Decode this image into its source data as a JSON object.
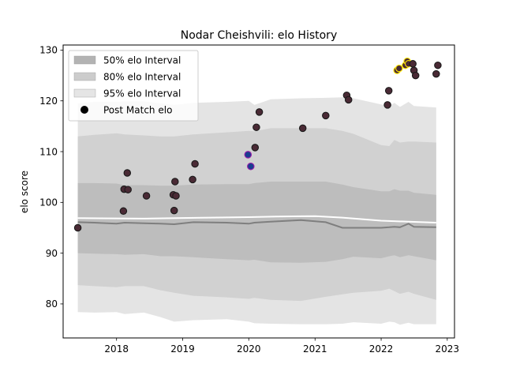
{
  "chart_data": {
    "type": "scatter",
    "title": "Nodar Cheishvili: elo History",
    "xlabel": "",
    "ylabel": "elo score",
    "xlim": [
      "2017-03-12",
      "2023-02-10"
    ],
    "ylim": [
      73.3,
      131
    ],
    "x_ticks": [
      "2018",
      "2019",
      "2020",
      "2021",
      "2022",
      "2023"
    ],
    "y_ticks": [
      80,
      90,
      100,
      110,
      120,
      130
    ],
    "grid": false,
    "legend_position": "top-left",
    "legend": [
      {
        "label": "50% elo Interval",
        "kind": "band",
        "color": "#b3b3b3"
      },
      {
        "label": "80% elo Interval",
        "kind": "band",
        "color": "#cccccc"
      },
      {
        "label": "95% elo Interval",
        "kind": "band",
        "color": "#e5e5e5"
      },
      {
        "label": "Post Match elo",
        "kind": "marker",
        "color": "#000000"
      }
    ],
    "colors": {
      "band50": "#bdbdbd",
      "band80": "#d1d1d1",
      "band95": "#e4e4e4",
      "median_line": "#7f7f7f",
      "reference_line": "#ffffff",
      "point_fill": "#4a2a35",
      "point_edge": "#1a1a1a",
      "highlight_edge": "#ffe600",
      "alt_edge": "#9a1aa8",
      "alt_fill": "#1a3d8f"
    },
    "bands": {
      "x": [
        "2017-06-01",
        "2017-09-01",
        "2018-01-01",
        "2018-02-15",
        "2018-06-01",
        "2018-09-01",
        "2018-11-15",
        "2019-03-01",
        "2019-09-01",
        "2020-01-01",
        "2020-02-01",
        "2020-05-01",
        "2020-10-15",
        "2021-03-01",
        "2021-06-01",
        "2021-08-01",
        "2022-01-01",
        "2022-02-15",
        "2022-03-15",
        "2022-04-15",
        "2022-06-01",
        "2022-07-01",
        "2022-11-01"
      ],
      "p97_5": [
        119.5,
        119.8,
        119.8,
        119.9,
        119.9,
        119.5,
        119.2,
        119.6,
        119.8,
        120.0,
        119.2,
        120.3,
        120.5,
        120.6,
        120.7,
        120.5,
        119.3,
        119.0,
        119.6,
        118.8,
        119.8,
        119.0,
        118.7
      ],
      "p90": [
        113.0,
        113.3,
        113.6,
        113.4,
        113.2,
        113.0,
        113.0,
        113.4,
        113.8,
        114.1,
        114.0,
        114.6,
        114.6,
        114.6,
        114.1,
        113.5,
        111.3,
        111.1,
        112.3,
        111.8,
        112.0,
        112.0,
        111.8
      ],
      "p75": [
        103.8,
        103.8,
        103.7,
        103.4,
        103.4,
        103.3,
        103.3,
        103.5,
        103.6,
        103.6,
        103.8,
        104.1,
        104.1,
        104.1,
        103.5,
        103.0,
        102.2,
        102.2,
        102.6,
        102.3,
        102.3,
        101.9,
        101.5
      ],
      "p50": [
        96.1,
        96.0,
        95.8,
        96.0,
        95.9,
        95.8,
        95.7,
        96.1,
        96.0,
        95.8,
        96.0,
        96.2,
        96.5,
        96.1,
        95.0,
        95.0,
        95.0,
        95.1,
        95.2,
        95.1,
        95.8,
        95.2,
        95.1
      ],
      "p25": [
        90.0,
        89.9,
        89.8,
        89.7,
        89.8,
        89.4,
        89.4,
        89.2,
        88.8,
        88.6,
        88.7,
        88.2,
        88.1,
        88.3,
        88.8,
        89.3,
        89.0,
        89.4,
        89.6,
        89.2,
        89.6,
        89.4,
        88.6
      ],
      "p10": [
        83.7,
        83.5,
        83.3,
        83.5,
        83.5,
        82.7,
        82.2,
        81.6,
        81.3,
        81.0,
        81.2,
        80.8,
        80.6,
        81.4,
        81.9,
        82.2,
        82.6,
        83.0,
        82.5,
        82.0,
        82.4,
        82.0,
        80.8
      ],
      "p2_5": [
        78.4,
        78.3,
        78.4,
        78.0,
        78.3,
        77.4,
        76.5,
        76.8,
        77.0,
        76.5,
        76.2,
        76.1,
        76.0,
        76.0,
        76.1,
        76.4,
        76.1,
        76.5,
        76.4,
        75.9,
        76.3,
        76.0,
        76.0
      ]
    },
    "reference_line": {
      "x": [
        "2017-06-01",
        "2018-06-01",
        "2019-06-01",
        "2020-01-01",
        "2020-06-01",
        "2021-01-01",
        "2021-06-01",
        "2022-01-01",
        "2022-06-01",
        "2022-11-01"
      ],
      "y": [
        96.9,
        96.8,
        97.0,
        97.1,
        97.2,
        97.3,
        97.0,
        96.4,
        96.2,
        96.0
      ]
    },
    "points": [
      {
        "x": "2017-06-01",
        "y": 95.0,
        "edge": "normal"
      },
      {
        "x": "2018-02-08",
        "y": 98.3,
        "edge": "normal"
      },
      {
        "x": "2018-02-12",
        "y": 102.6,
        "edge": "normal"
      },
      {
        "x": "2018-03-05",
        "y": 102.5,
        "edge": "normal"
      },
      {
        "x": "2018-03-01",
        "y": 105.8,
        "edge": "normal"
      },
      {
        "x": "2018-06-15",
        "y": 101.3,
        "edge": "normal"
      },
      {
        "x": "2018-11-10",
        "y": 101.5,
        "edge": "normal"
      },
      {
        "x": "2018-11-25",
        "y": 101.3,
        "edge": "normal"
      },
      {
        "x": "2018-11-15",
        "y": 98.4,
        "edge": "normal"
      },
      {
        "x": "2018-11-20",
        "y": 104.1,
        "edge": "normal"
      },
      {
        "x": "2019-02-25",
        "y": 104.5,
        "edge": "normal"
      },
      {
        "x": "2019-03-10",
        "y": 107.6,
        "edge": "normal"
      },
      {
        "x": "2019-12-28",
        "y": 109.4,
        "edge": "alt"
      },
      {
        "x": "2020-01-12",
        "y": 107.1,
        "edge": "alt"
      },
      {
        "x": "2020-02-05",
        "y": 110.8,
        "edge": "normal"
      },
      {
        "x": "2020-02-12",
        "y": 114.8,
        "edge": "normal"
      },
      {
        "x": "2020-02-28",
        "y": 117.8,
        "edge": "normal"
      },
      {
        "x": "2020-10-25",
        "y": 114.6,
        "edge": "normal"
      },
      {
        "x": "2021-03-01",
        "y": 117.1,
        "edge": "normal"
      },
      {
        "x": "2021-06-25",
        "y": 121.1,
        "edge": "normal"
      },
      {
        "x": "2021-07-05",
        "y": 120.2,
        "edge": "normal"
      },
      {
        "x": "2022-02-05",
        "y": 119.2,
        "edge": "normal"
      },
      {
        "x": "2022-02-12",
        "y": 122.0,
        "edge": "normal"
      },
      {
        "x": "2022-03-30",
        "y": 126.0,
        "edge": "highlight"
      },
      {
        "x": "2022-04-10",
        "y": 126.4,
        "edge": "highlight"
      },
      {
        "x": "2022-05-15",
        "y": 127.0,
        "edge": "highlight"
      },
      {
        "x": "2022-05-25",
        "y": 127.8,
        "edge": "highlight"
      },
      {
        "x": "2022-06-01",
        "y": 127.3,
        "edge": "highlight"
      },
      {
        "x": "2022-06-25",
        "y": 127.3,
        "edge": "normal"
      },
      {
        "x": "2022-07-01",
        "y": 126.0,
        "edge": "normal"
      },
      {
        "x": "2022-07-10",
        "y": 125.0,
        "edge": "normal"
      },
      {
        "x": "2022-11-01",
        "y": 125.3,
        "edge": "normal"
      },
      {
        "x": "2022-11-10",
        "y": 127.0,
        "edge": "normal"
      }
    ]
  }
}
